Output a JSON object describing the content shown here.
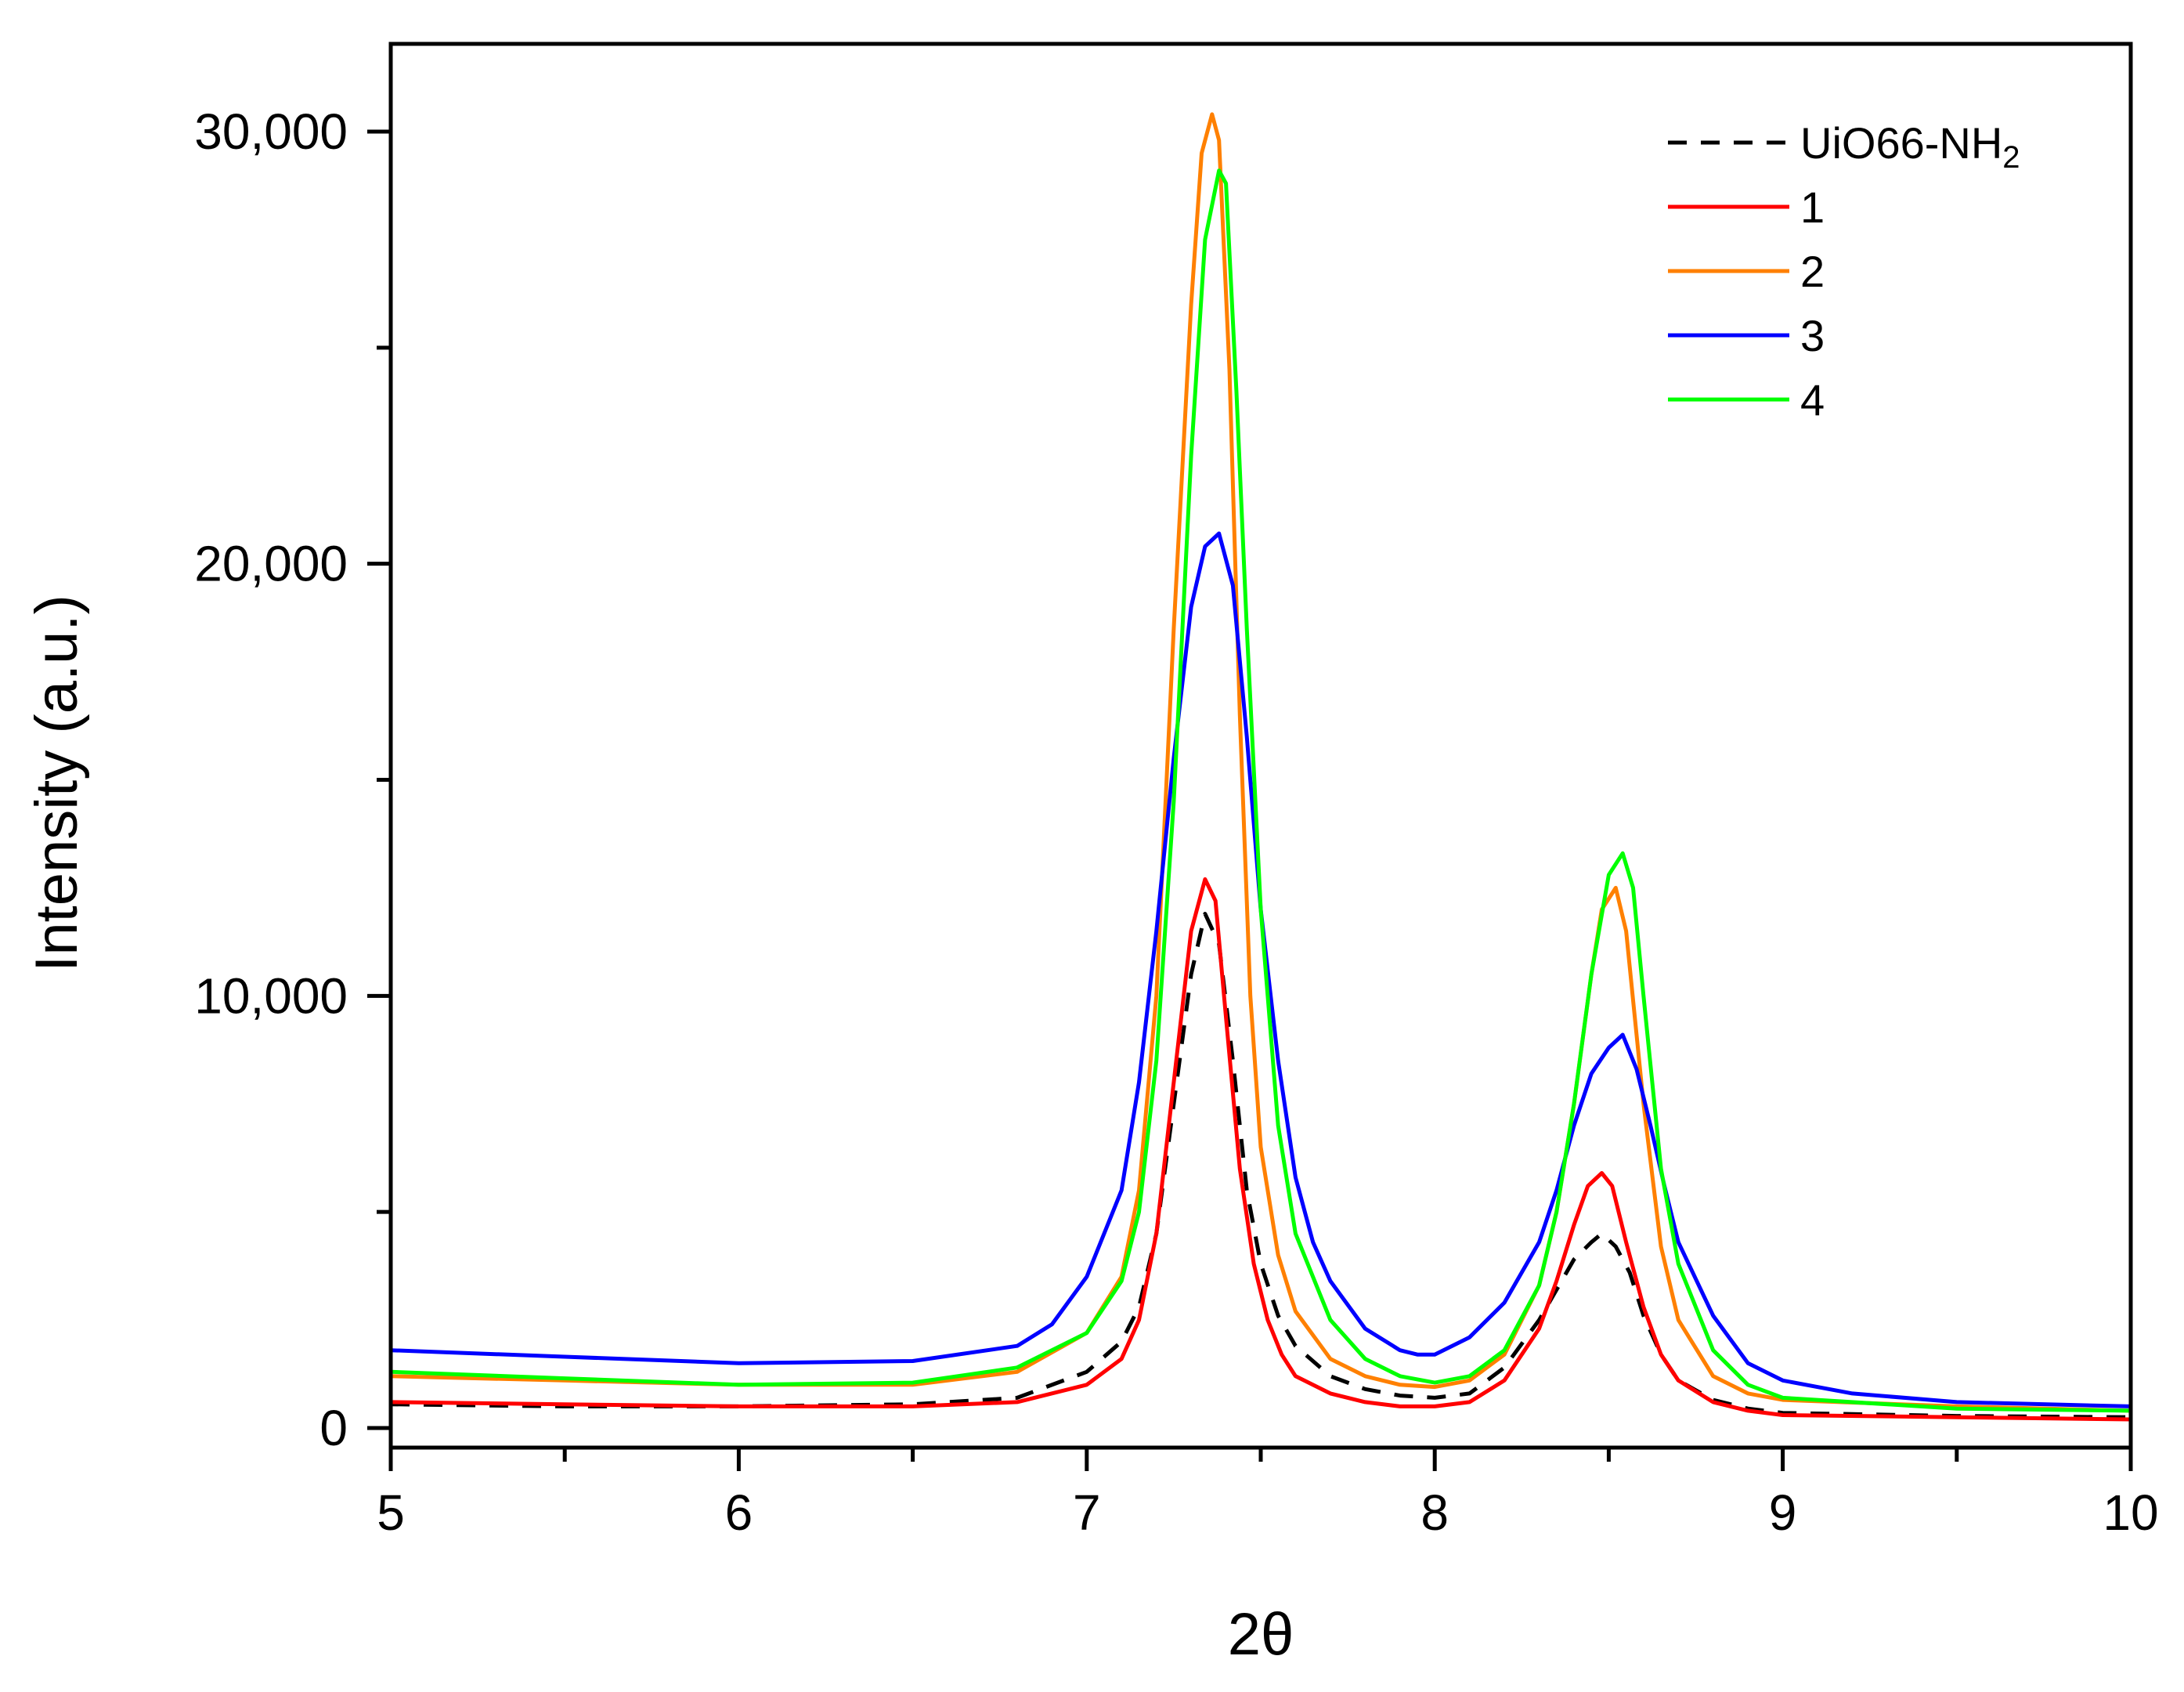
{
  "chart_data": {
    "type": "line",
    "xlabel": "2θ",
    "ylabel": "Intensity  (a.u.)",
    "xlim": [
      5,
      10
    ],
    "ylim": [
      -500,
      32000
    ],
    "x_ticks": [
      5,
      6,
      7,
      8,
      9,
      10
    ],
    "x_tick_labels": [
      "5",
      "6",
      "7",
      "8",
      "9",
      "10"
    ],
    "y_ticks": [
      0,
      10000,
      20000,
      30000
    ],
    "y_tick_labels": [
      "0",
      "10,000",
      "20,000",
      "30,000"
    ],
    "grid": false,
    "legend_position": "top-right",
    "series": [
      {
        "name": "UiO66-NH",
        "name_sub": "2",
        "color": "#000000",
        "dashed": true,
        "x": [
          5.0,
          5.5,
          6.0,
          6.5,
          6.8,
          7.0,
          7.1,
          7.15,
          7.2,
          7.25,
          7.3,
          7.34,
          7.38,
          7.42,
          7.46,
          7.5,
          7.55,
          7.6,
          7.7,
          7.8,
          7.9,
          8.0,
          8.1,
          8.2,
          8.3,
          8.35,
          8.4,
          8.45,
          8.48,
          8.52,
          8.56,
          8.6,
          8.65,
          8.7,
          8.8,
          8.9,
          9.0,
          9.5,
          10.0
        ],
        "y": [
          550,
          500,
          500,
          550,
          700,
          1300,
          2000,
          2800,
          4500,
          7500,
          10500,
          11900,
          11200,
          8500,
          5500,
          3800,
          2600,
          1900,
          1200,
          900,
          750,
          700,
          800,
          1400,
          2500,
          3200,
          3900,
          4300,
          4500,
          4200,
          3600,
          2600,
          1700,
          1100,
          650,
          450,
          350,
          280,
          250
        ]
      },
      {
        "name": "1",
        "color": "#ff0000",
        "dashed": false,
        "x": [
          5.0,
          5.5,
          6.0,
          6.5,
          6.8,
          7.0,
          7.1,
          7.15,
          7.2,
          7.25,
          7.3,
          7.34,
          7.37,
          7.4,
          7.44,
          7.48,
          7.52,
          7.56,
          7.6,
          7.7,
          7.8,
          7.9,
          8.0,
          8.1,
          8.2,
          8.3,
          8.35,
          8.4,
          8.44,
          8.48,
          8.51,
          8.55,
          8.6,
          8.65,
          8.7,
          8.8,
          8.9,
          9.0,
          9.5,
          10.0
        ],
        "y": [
          600,
          550,
          500,
          500,
          600,
          1000,
          1600,
          2500,
          4500,
          8000,
          11500,
          12700,
          12200,
          9500,
          6000,
          3800,
          2500,
          1700,
          1200,
          800,
          600,
          500,
          500,
          600,
          1100,
          2300,
          3400,
          4700,
          5600,
          5900,
          5600,
          4300,
          2800,
          1700,
          1100,
          600,
          400,
          300,
          250,
          200
        ]
      },
      {
        "name": "2",
        "color": "#ff8000",
        "dashed": false,
        "x": [
          5.0,
          5.5,
          6.0,
          6.5,
          6.8,
          7.0,
          7.1,
          7.15,
          7.2,
          7.25,
          7.3,
          7.33,
          7.36,
          7.38,
          7.41,
          7.44,
          7.47,
          7.5,
          7.55,
          7.6,
          7.7,
          7.8,
          7.9,
          8.0,
          8.1,
          8.2,
          8.3,
          8.35,
          8.4,
          8.45,
          8.48,
          8.52,
          8.55,
          8.6,
          8.65,
          8.7,
          8.8,
          8.9,
          9.0,
          9.5,
          10.0
        ],
        "y": [
          1200,
          1100,
          1000,
          1000,
          1300,
          2200,
          3500,
          5500,
          10000,
          18500,
          26000,
          29500,
          30400,
          29800,
          24500,
          16500,
          10000,
          6500,
          4000,
          2700,
          1600,
          1200,
          1000,
          950,
          1100,
          1700,
          3300,
          5000,
          7500,
          10500,
          12000,
          12500,
          11500,
          7500,
          4200,
          2500,
          1200,
          800,
          650,
          500,
          400
        ]
      },
      {
        "name": "3",
        "color": "#0000ff",
        "dashed": false,
        "x": [
          5.0,
          5.5,
          6.0,
          6.5,
          6.8,
          6.9,
          7.0,
          7.1,
          7.15,
          7.2,
          7.25,
          7.3,
          7.34,
          7.38,
          7.42,
          7.46,
          7.5,
          7.55,
          7.6,
          7.65,
          7.7,
          7.8,
          7.9,
          7.95,
          8.0,
          8.1,
          8.2,
          8.3,
          8.35,
          8.4,
          8.45,
          8.5,
          8.54,
          8.58,
          8.62,
          8.66,
          8.7,
          8.8,
          8.9,
          9.0,
          9.2,
          9.5,
          10.0
        ],
        "y": [
          1800,
          1650,
          1500,
          1550,
          1900,
          2400,
          3500,
          5500,
          8000,
          11500,
          15500,
          19000,
          20400,
          20700,
          19500,
          16000,
          12000,
          8500,
          5800,
          4300,
          3400,
          2300,
          1800,
          1700,
          1700,
          2100,
          2900,
          4300,
          5500,
          7000,
          8200,
          8800,
          9100,
          8300,
          7000,
          5600,
          4300,
          2600,
          1500,
          1100,
          800,
          600,
          500
        ]
      },
      {
        "name": "4",
        "color": "#00ff00",
        "dashed": false,
        "x": [
          5.0,
          5.5,
          6.0,
          6.5,
          6.8,
          7.0,
          7.1,
          7.15,
          7.2,
          7.25,
          7.3,
          7.34,
          7.38,
          7.4,
          7.43,
          7.46,
          7.5,
          7.55,
          7.6,
          7.7,
          7.8,
          7.9,
          8.0,
          8.1,
          8.2,
          8.3,
          8.35,
          8.4,
          8.45,
          8.5,
          8.54,
          8.57,
          8.6,
          8.65,
          8.7,
          8.8,
          8.9,
          9.0,
          9.5,
          10.0
        ],
        "y": [
          1300,
          1150,
          1000,
          1050,
          1400,
          2200,
          3400,
          5000,
          8500,
          14500,
          22500,
          27500,
          29100,
          28800,
          24000,
          18500,
          12000,
          7000,
          4500,
          2500,
          1600,
          1200,
          1050,
          1200,
          1800,
          3300,
          5000,
          7500,
          10500,
          12800,
          13300,
          12500,
          10000,
          6000,
          3800,
          1800,
          1000,
          700,
          450,
          400
        ]
      }
    ]
  }
}
